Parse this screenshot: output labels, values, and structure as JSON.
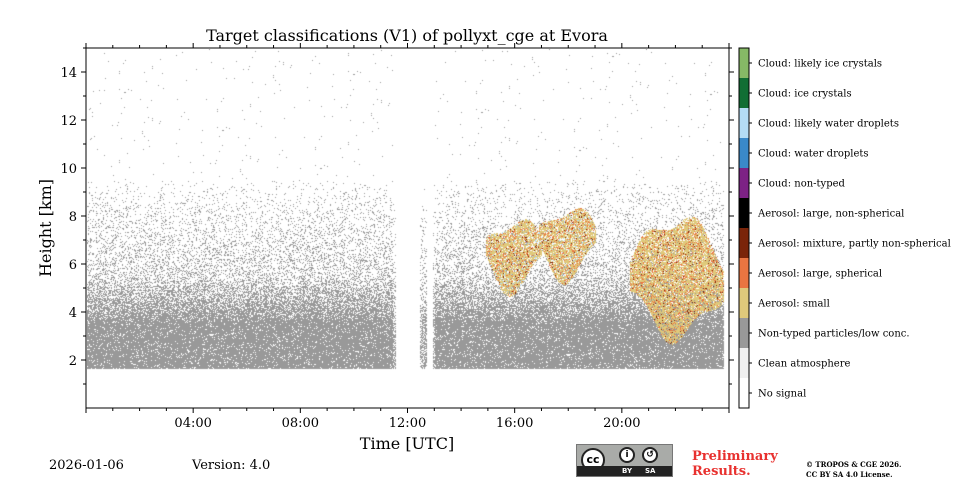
{
  "chart_data": {
    "type": "heatmap",
    "title": "Target classifications (V1) of pollyxt_cge at Evora",
    "xlabel": "Time [UTC]",
    "ylabel": "Height [km]",
    "xlim": [
      0,
      24
    ],
    "ylim": [
      0,
      15
    ],
    "x_ticks": [
      4,
      8,
      12,
      16,
      20
    ],
    "x_tick_labels": [
      "04:00",
      "08:00",
      "12:00",
      "16:00",
      "20:00"
    ],
    "y_ticks": [
      2,
      4,
      6,
      8,
      10,
      12,
      14
    ],
    "y_tick_labels": [
      "2",
      "4",
      "6",
      "8",
      "10",
      "12",
      "14"
    ],
    "data_gaps_hours": [
      [
        11.55,
        12.45
      ],
      [
        12.72,
        12.92
      ]
    ],
    "lowest_height_km": 1.6,
    "categories": [
      {
        "label": "No signal",
        "color": "#ffffff"
      },
      {
        "label": "Clean atmosphere",
        "color": "#f0f0f0"
      },
      {
        "label": "Non-typed particles/low conc.",
        "color": "#999999"
      },
      {
        "label": "Aerosol: small",
        "color": "#dfc97b"
      },
      {
        "label": "Aerosol: large, spherical",
        "color": "#ea7541"
      },
      {
        "label": "Aerosol: mixture, partly non-spherical",
        "color": "#7a2409"
      },
      {
        "label": "Aerosol: large, non-spherical",
        "color": "#000000"
      },
      {
        "label": "Cloud: non-typed",
        "color": "#7d2285"
      },
      {
        "label": "Cloud: water droplets",
        "color": "#3a89c9"
      },
      {
        "label": "Cloud: likely water droplets",
        "color": "#b4dcf5"
      },
      {
        "label": "Cloud: ice crystals",
        "color": "#116e34"
      },
      {
        "label": "Cloud: likely ice crystals",
        "color": "#86b966"
      }
    ],
    "aerosol_layers": [
      {
        "start_h": 14.9,
        "end_h": 17.0,
        "base_km": 5.0,
        "top_km": 7.9
      },
      {
        "start_h": 16.9,
        "end_h": 19.0,
        "base_km": 5.5,
        "top_km": 8.4
      },
      {
        "start_h": 20.3,
        "end_h": 23.8,
        "base_km": 3.0,
        "top_km": 7.9
      }
    ]
  },
  "footer": {
    "date": "2026-01-06",
    "version": "Version: 4.0",
    "license_badge": [
      "BY",
      "SA"
    ],
    "preliminary_line1": "Preliminary",
    "preliminary_line2": "Results.",
    "copyright_line1": "© TROPOS & CGE 2026.",
    "copyright_line2": "CC BY SA 4.0 License."
  }
}
